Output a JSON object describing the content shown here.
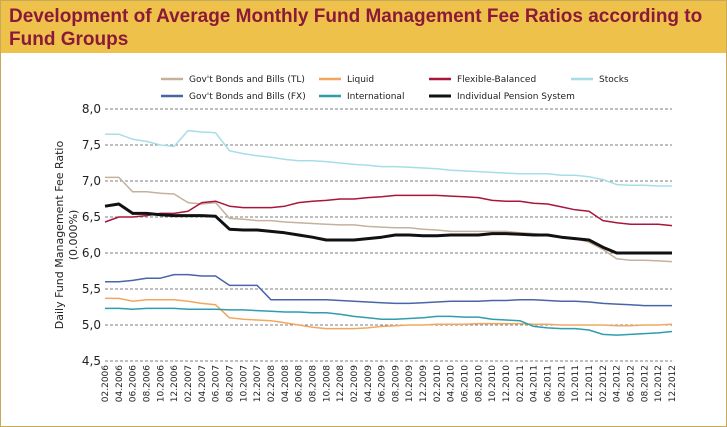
{
  "page": {
    "title": "Development of Average Monthly Fund Management Fee Ratios according to Fund Groups",
    "title_color": "#8b1a3a",
    "banner_color": "#eec14a"
  },
  "chart_data": {
    "type": "line",
    "title": "Development of Average Monthly Fund Management Fee Ratios according to Fund Groups",
    "xlabel": "",
    "ylabel": "Daily Fund Management Fee Ratio",
    "ylabel_unit": "(0.000%)",
    "ylim": [
      4.5,
      8.0
    ],
    "yticks": [
      4.5,
      5.0,
      5.5,
      6.0,
      6.5,
      7.0,
      7.5,
      8.0
    ],
    "ytick_labels": [
      "4,5",
      "5,0",
      "5,5",
      "6,0",
      "6,5",
      "7,0",
      "7,5",
      "8,0"
    ],
    "grid": "horizontal dashed",
    "legend_position": "top",
    "x": [
      "02.2006",
      "04.2006",
      "06.2006",
      "08.2006",
      "10.2006",
      "12.2006",
      "02.2007",
      "04.2007",
      "06.2007",
      "08.2007",
      "10.2007",
      "12.2007",
      "02.2008",
      "04.2008",
      "06.2008",
      "08.2008",
      "10.2008",
      "12.2008",
      "02.2009",
      "04.2009",
      "06.2009",
      "08.2009",
      "10.2009",
      "12.2009",
      "02.2010",
      "04.2010",
      "06.2010",
      "08.2010",
      "10.2010",
      "12.2010",
      "02.2011",
      "04.2011",
      "06.2011",
      "08.2011",
      "10.2011",
      "12.2011",
      "02.2012",
      "04.2012",
      "06.2012",
      "08.2012",
      "10.2012",
      "12.2012"
    ],
    "series": [
      {
        "name": "Gov't Bonds and Bills (TL)",
        "color": "#c4b19e",
        "width": 1.5,
        "values": [
          7.05,
          7.05,
          6.85,
          6.85,
          6.83,
          6.82,
          6.7,
          6.68,
          6.7,
          6.48,
          6.47,
          6.45,
          6.45,
          6.43,
          6.42,
          6.41,
          6.4,
          6.39,
          6.39,
          6.37,
          6.36,
          6.35,
          6.35,
          6.33,
          6.32,
          6.3,
          6.3,
          6.3,
          6.3,
          6.3,
          6.28,
          6.27,
          6.25,
          6.22,
          6.2,
          6.15,
          6.05,
          5.92,
          5.9,
          5.9,
          5.89,
          5.88
        ]
      },
      {
        "name": "Gov't Bonds and Bills (FX)",
        "color": "#4a64a8",
        "width": 1.5,
        "values": [
          5.6,
          5.6,
          5.62,
          5.65,
          5.65,
          5.7,
          5.7,
          5.68,
          5.68,
          5.55,
          5.55,
          5.55,
          5.35,
          5.35,
          5.35,
          5.35,
          5.35,
          5.34,
          5.33,
          5.32,
          5.31,
          5.3,
          5.3,
          5.31,
          5.32,
          5.33,
          5.33,
          5.33,
          5.34,
          5.34,
          5.35,
          5.35,
          5.34,
          5.33,
          5.33,
          5.32,
          5.3,
          5.29,
          5.28,
          5.27,
          5.27,
          5.27
        ]
      },
      {
        "name": "Liquid",
        "color": "#f0a860",
        "width": 1.5,
        "values": [
          5.37,
          5.37,
          5.33,
          5.35,
          5.35,
          5.35,
          5.33,
          5.3,
          5.28,
          5.1,
          5.08,
          5.07,
          5.06,
          5.03,
          5.0,
          4.97,
          4.95,
          4.95,
          4.95,
          4.96,
          4.98,
          4.99,
          5.0,
          5.0,
          5.01,
          5.01,
          5.01,
          5.02,
          5.02,
          5.02,
          5.02,
          5.01,
          5.01,
          5.0,
          5.0,
          5.0,
          5.0,
          4.99,
          4.99,
          5.0,
          5.0,
          5.01
        ]
      },
      {
        "name": "International",
        "color": "#2e9dae",
        "width": 1.5,
        "values": [
          5.23,
          5.23,
          5.22,
          5.23,
          5.23,
          5.23,
          5.22,
          5.22,
          5.22,
          5.21,
          5.21,
          5.2,
          5.19,
          5.18,
          5.18,
          5.17,
          5.17,
          5.15,
          5.12,
          5.1,
          5.08,
          5.08,
          5.09,
          5.1,
          5.12,
          5.12,
          5.11,
          5.11,
          5.08,
          5.07,
          5.06,
          4.98,
          4.96,
          4.95,
          4.95,
          4.93,
          4.87,
          4.86,
          4.87,
          4.88,
          4.89,
          4.91
        ]
      },
      {
        "name": "Flexible-Balanced",
        "color": "#a8163c",
        "width": 1.5,
        "values": [
          6.43,
          6.5,
          6.5,
          6.52,
          6.55,
          6.55,
          6.58,
          6.7,
          6.72,
          6.65,
          6.63,
          6.63,
          6.63,
          6.65,
          6.7,
          6.72,
          6.73,
          6.75,
          6.75,
          6.77,
          6.78,
          6.8,
          6.8,
          6.8,
          6.8,
          6.79,
          6.78,
          6.77,
          6.73,
          6.72,
          6.72,
          6.69,
          6.68,
          6.64,
          6.6,
          6.58,
          6.45,
          6.42,
          6.4,
          6.4,
          6.4,
          6.38
        ]
      },
      {
        "name": "Individual Pension System",
        "color": "#111111",
        "width": 3,
        "values": [
          6.65,
          6.68,
          6.55,
          6.55,
          6.53,
          6.52,
          6.52,
          6.52,
          6.51,
          6.33,
          6.32,
          6.32,
          6.3,
          6.28,
          6.25,
          6.22,
          6.18,
          6.18,
          6.18,
          6.2,
          6.22,
          6.25,
          6.25,
          6.24,
          6.24,
          6.25,
          6.25,
          6.25,
          6.27,
          6.27,
          6.26,
          6.25,
          6.25,
          6.22,
          6.2,
          6.18,
          6.08,
          6.0,
          6.0,
          6.0,
          6.0,
          6.0
        ]
      },
      {
        "name": "Stocks",
        "color": "#a8dde8",
        "width": 1.5,
        "values": [
          7.65,
          7.65,
          7.58,
          7.55,
          7.5,
          7.48,
          7.7,
          7.68,
          7.67,
          7.42,
          7.38,
          7.35,
          7.33,
          7.3,
          7.28,
          7.28,
          7.27,
          7.25,
          7.23,
          7.22,
          7.2,
          7.2,
          7.19,
          7.18,
          7.17,
          7.15,
          7.14,
          7.13,
          7.12,
          7.11,
          7.1,
          7.1,
          7.1,
          7.08,
          7.08,
          7.06,
          7.02,
          6.95,
          6.94,
          6.94,
          6.93,
          6.93
        ]
      }
    ],
    "legend": [
      {
        "label": "Gov't Bonds and Bills (TL)",
        "color": "#c4b19e"
      },
      {
        "label": "Liquid",
        "color": "#f0a860"
      },
      {
        "label": "Flexible-Balanced",
        "color": "#a8163c"
      },
      {
        "label": "Stocks",
        "color": "#a8dde8"
      },
      {
        "label": "Gov't Bonds and Bills (FX)",
        "color": "#4a64a8"
      },
      {
        "label": "International",
        "color": "#2e9dae"
      },
      {
        "label": "Individual Pension System",
        "color": "#111111"
      }
    ]
  }
}
